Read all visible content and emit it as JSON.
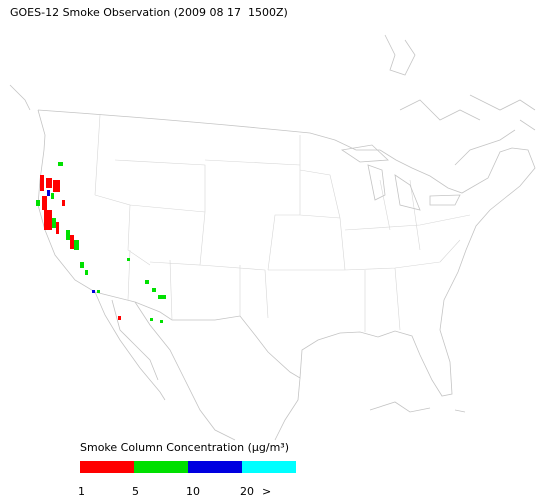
{
  "title": "GOES-12 Smoke Observation (2009 08 17  1500Z)",
  "legend": {
    "title": "Smoke Column Concentration (μg/m³)",
    "colors": [
      "#ff0000",
      "#00e000",
      "#0000e0",
      "#00ffff"
    ],
    "ticks": [
      1,
      5,
      10,
      20
    ],
    "open_end_label": ">"
  }
}
